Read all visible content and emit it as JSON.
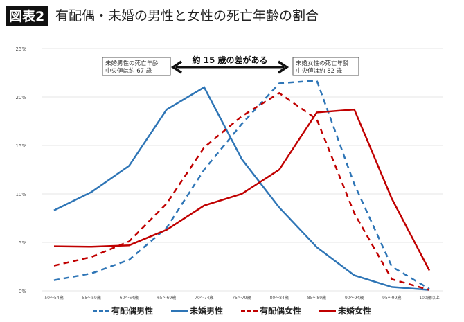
{
  "header": {
    "badge": "図表2",
    "title": "有配偶・未婚の男性と女性の死亡年齢の割合"
  },
  "chart_data": {
    "type": "line",
    "title": "有配偶・未婚の男性と女性の死亡年齢の割合",
    "categories": [
      "50～54歳",
      "55～59歳",
      "60～64歳",
      "65～69歳",
      "70～74歳",
      "75～79歳",
      "80～84歳",
      "85～89歳",
      "90～94歳",
      "95～99歳",
      "100歳以上"
    ],
    "ylim": [
      0,
      25
    ],
    "yticks": [
      "0%",
      "5%",
      "10%",
      "15%",
      "20%",
      "25%"
    ],
    "grid": true,
    "legend_position": "bottom",
    "series": [
      {
        "name": "有配偶男性",
        "color": "#2e75b6",
        "dash": true,
        "values": [
          1.1,
          1.8,
          3.2,
          6.5,
          12.5,
          17.2,
          21.4,
          21.7,
          11.0,
          2.5,
          0.2
        ]
      },
      {
        "name": "未婚男性",
        "color": "#2e75b6",
        "dash": false,
        "values": [
          8.3,
          10.2,
          12.9,
          18.7,
          21.0,
          13.6,
          8.6,
          4.5,
          1.6,
          0.4,
          0.1
        ]
      },
      {
        "name": "有配偶女性",
        "color": "#c00000",
        "dash": true,
        "values": [
          2.6,
          3.5,
          5.1,
          9.0,
          14.8,
          18.0,
          20.4,
          17.7,
          8.0,
          1.2,
          0.1
        ]
      },
      {
        "name": "未婚女性",
        "color": "#c00000",
        "dash": false,
        "values": [
          4.6,
          4.55,
          4.7,
          6.3,
          8.8,
          10.0,
          12.5,
          18.4,
          18.7,
          9.5,
          2.1
        ]
      }
    ],
    "annotations": {
      "left_box": [
        "未婚男性の死亡年齢",
        "中央値は約 67 歳"
      ],
      "right_box": [
        "未婚女性の死亡年齢",
        "中央値は約 82 歳"
      ],
      "arrow_label": "約 15 歳の差がある"
    }
  }
}
